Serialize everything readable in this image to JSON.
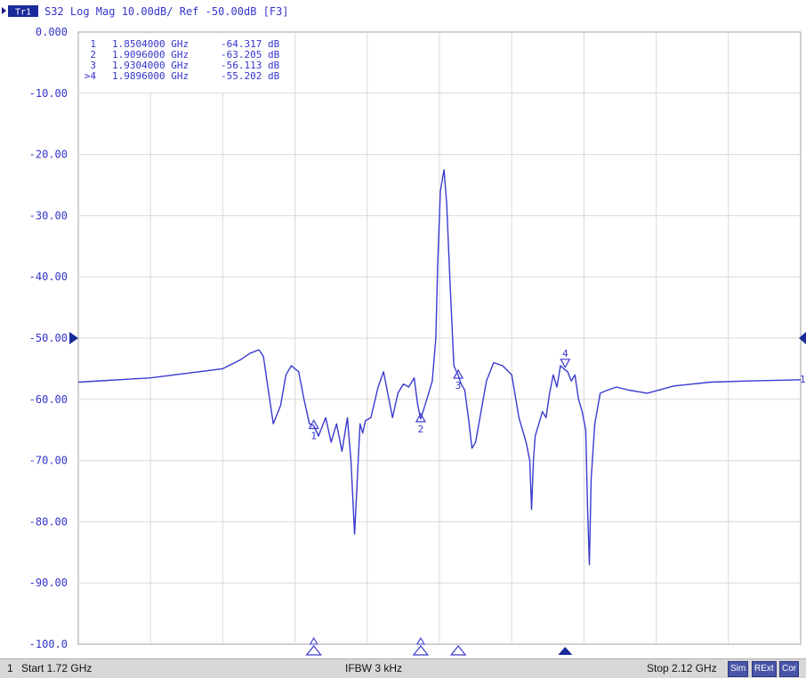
{
  "header": {
    "trace_tag": "Tr1",
    "text": "S32 Log Mag 10.00dB/ Ref -50.00dB [F3]"
  },
  "marker_table": [
    {
      "id": "1",
      "freq": "1.8504000 GHz",
      "value": "-64.317 dB"
    },
    {
      "id": "2",
      "freq": "1.9096000 GHz",
      "value": "-63.205 dB"
    },
    {
      "id": "3",
      "freq": "1.9304000 GHz",
      "value": "-56.113 dB"
    },
    {
      "id": ">4",
      "freq": "1.9896000 GHz",
      "value": "-55.202 dB"
    }
  ],
  "status": {
    "channel": "1",
    "start": "Start 1.72 GHz",
    "ifbw": "IFBW 3 kHz",
    "stop": "Stop 2.12 GHz",
    "badges": [
      "Sim",
      "RExt",
      "Cor"
    ]
  },
  "right_trace_label": "1",
  "colors": {
    "trace": "#3a3ad0",
    "grid": "#d8d8d8",
    "text": "#3434cc",
    "statusbar": "#d8d8d8"
  },
  "chart_data": {
    "type": "line",
    "xlim": [
      1.72,
      2.12
    ],
    "ylim": [
      -100,
      0
    ],
    "reference_level": -50,
    "y_ticks": [
      "0.000",
      "-10.00",
      "-20.00",
      "-30.00",
      "-40.00",
      "-50.00",
      "-60.00",
      "-70.00",
      "-80.00",
      "-90.00",
      "-100.0"
    ],
    "y_tick_values": [
      0,
      -10,
      -20,
      -30,
      -40,
      -50,
      -60,
      -70,
      -80,
      -90,
      -100
    ],
    "x_divisions": 10,
    "series": [
      {
        "x": [
          1.72,
          1.76,
          1.8,
          1.81,
          1.815,
          1.82,
          1.8225,
          1.825,
          1.828,
          1.832,
          1.835,
          1.838,
          1.842,
          1.845,
          1.848,
          1.8504,
          1.853,
          1.857,
          1.86,
          1.863,
          1.866,
          1.869,
          1.871,
          1.873,
          1.876,
          1.8775,
          1.879,
          1.882,
          1.886,
          1.889,
          1.892,
          1.894,
          1.897,
          1.9,
          1.903,
          1.906,
          1.908,
          1.9096,
          1.913,
          1.916,
          1.918,
          1.919,
          1.9205,
          1.9225,
          1.924,
          1.926,
          1.928,
          1.9304,
          1.932,
          1.934,
          1.936,
          1.938,
          1.94,
          1.943,
          1.946,
          1.95,
          1.955,
          1.96,
          1.964,
          1.968,
          1.97,
          1.971,
          1.972,
          1.973,
          1.975,
          1.977,
          1.979,
          1.981,
          1.983,
          1.985,
          1.987,
          1.9896,
          1.991,
          1.993,
          1.995,
          1.997,
          1.999,
          2.001,
          2.002,
          2.003,
          2.004,
          2.006,
          2.009,
          2.013,
          2.018,
          2.025,
          2.035,
          2.05,
          2.07,
          2.09,
          2.12
        ],
        "y": [
          -57.2,
          -56.5,
          -55.0,
          -53.5,
          -52.5,
          -51.9,
          -53.0,
          -58.0,
          -64.0,
          -61.0,
          -56.0,
          -54.5,
          -55.5,
          -60.0,
          -64.0,
          -64.3,
          -66.0,
          -63.0,
          -67.0,
          -64.0,
          -68.5,
          -63.0,
          -70.0,
          -82.0,
          -64.0,
          -65.5,
          -63.5,
          -63.0,
          -58.0,
          -55.5,
          -60.0,
          -63.0,
          -59.0,
          -57.5,
          -58.0,
          -56.5,
          -61.0,
          -63.2,
          -60.0,
          -57.0,
          -50.0,
          -38.0,
          -26.0,
          -22.5,
          -28.0,
          -42.0,
          -54.5,
          -56.1,
          -57.5,
          -58.5,
          -63.0,
          -68.0,
          -67.0,
          -62.0,
          -57.0,
          -54.0,
          -54.5,
          -56.0,
          -63.0,
          -67.0,
          -70.0,
          -78.0,
          -70.0,
          -66.0,
          -64.0,
          -62.0,
          -63.0,
          -59.0,
          -56.0,
          -58.0,
          -54.5,
          -55.2,
          -55.5,
          -57.0,
          -56.0,
          -60.0,
          -62.0,
          -65.0,
          -78.0,
          -87.0,
          -73.0,
          -64.0,
          -59.0,
          -58.5,
          -58.0,
          -58.5,
          -59.0,
          -57.8,
          -57.2,
          -57.0,
          -56.8
        ]
      }
    ],
    "markers": [
      {
        "id": "1",
        "x": 1.8504,
        "y": -64.317
      },
      {
        "id": "2",
        "x": 1.9096,
        "y": -63.205
      },
      {
        "id": "3",
        "x": 1.9304,
        "y": -56.113
      },
      {
        "id": "4",
        "x": 1.9896,
        "y": -55.202,
        "active": true
      }
    ]
  }
}
